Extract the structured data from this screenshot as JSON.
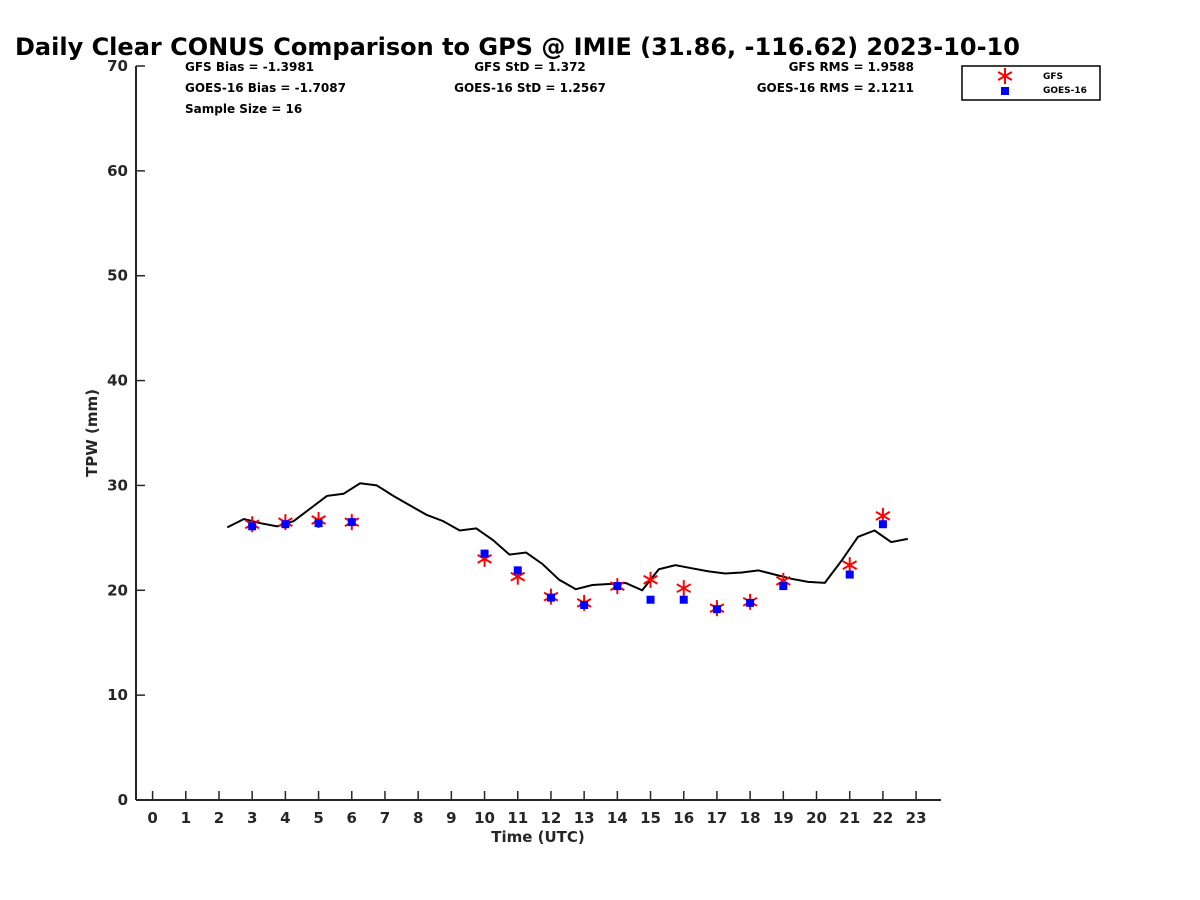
{
  "chart_data": {
    "type": "scatter",
    "title": "Daily Clear CONUS Comparison to GPS @ IMIE (31.86, -116.62) 2023-10-10",
    "xlabel": "Time (UTC)",
    "ylabel": "TPW (mm)",
    "xlim": [
      -0.5,
      23.75
    ],
    "ylim": [
      0,
      70
    ],
    "xticks": [
      0,
      1,
      2,
      3,
      4,
      5,
      6,
      7,
      8,
      9,
      10,
      11,
      12,
      13,
      14,
      15,
      16,
      17,
      18,
      19,
      20,
      21,
      22,
      23
    ],
    "yticks": [
      0,
      10,
      20,
      30,
      40,
      50,
      60,
      70
    ],
    "grid": false,
    "legend_position": "top-right",
    "stats": {
      "gfs_bias": "GFS Bias = -1.3981",
      "goes_bias": "GOES-16 Bias = -1.7087",
      "sample_size": "Sample Size = 16",
      "gfs_std": "GFS StD = 1.372",
      "goes_std": "GOES-16 StD = 1.2567",
      "gfs_rms": "GFS RMS = 1.9588",
      "goes_rms": "GOES-16 RMS = 2.1211"
    },
    "series": [
      {
        "name": "GPS",
        "type": "line",
        "color": "#000000",
        "x": [
          2.25,
          2.75,
          3.25,
          3.75,
          4.25,
          4.75,
          5.25,
          5.75,
          6.25,
          6.75,
          7.25,
          7.75,
          8.25,
          8.75,
          9.25,
          9.75,
          10.25,
          10.75,
          11.25,
          11.75,
          12.25,
          12.75,
          13.25,
          13.75,
          14.25,
          14.75,
          15.25,
          15.75,
          16.25,
          16.75,
          17.25,
          17.75,
          18.25,
          18.75,
          19.25,
          19.75,
          20.25,
          20.75,
          21.25,
          21.75,
          22.25,
          22.75
        ],
        "y": [
          26.0,
          26.8,
          26.4,
          26.1,
          26.6,
          27.8,
          29.0,
          29.2,
          30.2,
          30.0,
          29.0,
          28.1,
          27.2,
          26.6,
          25.7,
          25.9,
          24.8,
          23.4,
          23.6,
          22.5,
          21.0,
          20.1,
          20.5,
          20.6,
          20.7,
          20.0,
          22.0,
          22.4,
          22.1,
          21.8,
          21.6,
          21.7,
          21.9,
          21.5,
          21.1,
          20.8,
          20.7,
          22.8,
          25.1,
          25.7,
          24.6,
          24.9
        ]
      },
      {
        "name": "GFS",
        "type": "scatter",
        "marker": "asterisk",
        "color": "#ff0000",
        "x": [
          3,
          4,
          5,
          6,
          10,
          11,
          12,
          13,
          14,
          15,
          16,
          17,
          18,
          19,
          21,
          22
        ],
        "y": [
          26.3,
          26.5,
          26.7,
          26.5,
          23.0,
          21.3,
          19.4,
          18.8,
          20.4,
          21.0,
          20.2,
          18.3,
          18.9,
          20.9,
          22.4,
          27.1
        ]
      },
      {
        "name": "GOES-16",
        "type": "scatter",
        "marker": "square",
        "color": "#0000ff",
        "x": [
          3,
          4,
          5,
          6,
          10,
          11,
          12,
          13,
          14,
          15,
          16,
          17,
          18,
          19,
          21,
          22
        ],
        "y": [
          26.1,
          26.3,
          26.4,
          26.5,
          23.5,
          21.9,
          19.3,
          18.6,
          20.4,
          19.1,
          19.1,
          18.2,
          18.8,
          20.4,
          21.5,
          26.3
        ]
      }
    ]
  }
}
